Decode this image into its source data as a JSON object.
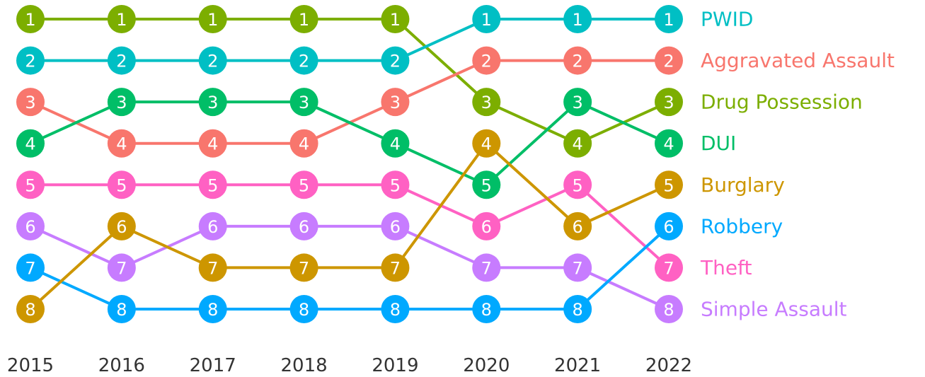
{
  "chart_data": {
    "type": "bump",
    "categories": [
      "2015",
      "2016",
      "2017",
      "2018",
      "2019",
      "2020",
      "2021",
      "2022"
    ],
    "ylim": [
      8,
      1
    ],
    "series": [
      {
        "name": "Drug Possession",
        "color": "#7CAE00",
        "values": [
          1,
          1,
          1,
          1,
          1,
          3,
          4,
          3
        ]
      },
      {
        "name": "PWID",
        "color": "#00BFC4",
        "values": [
          2,
          2,
          2,
          2,
          2,
          1,
          1,
          1
        ]
      },
      {
        "name": "Aggravated Assault",
        "color": "#F8766D",
        "values": [
          3,
          4,
          4,
          4,
          3,
          2,
          2,
          2
        ]
      },
      {
        "name": "DUI",
        "color": "#00BE67",
        "values": [
          4,
          3,
          3,
          3,
          4,
          5,
          3,
          4
        ]
      },
      {
        "name": "Theft",
        "color": "#FF61C3",
        "values": [
          5,
          5,
          5,
          5,
          5,
          6,
          5,
          7
        ]
      },
      {
        "name": "Simple Assault",
        "color": "#C77CFF",
        "values": [
          6,
          7,
          6,
          6,
          6,
          7,
          7,
          8
        ]
      },
      {
        "name": "Robbery",
        "color": "#00A9FF",
        "values": [
          7,
          8,
          8,
          8,
          8,
          8,
          8,
          6
        ]
      },
      {
        "name": "Burglary",
        "color": "#CD9600",
        "values": [
          8,
          6,
          7,
          7,
          7,
          4,
          6,
          5
        ]
      }
    ]
  }
}
